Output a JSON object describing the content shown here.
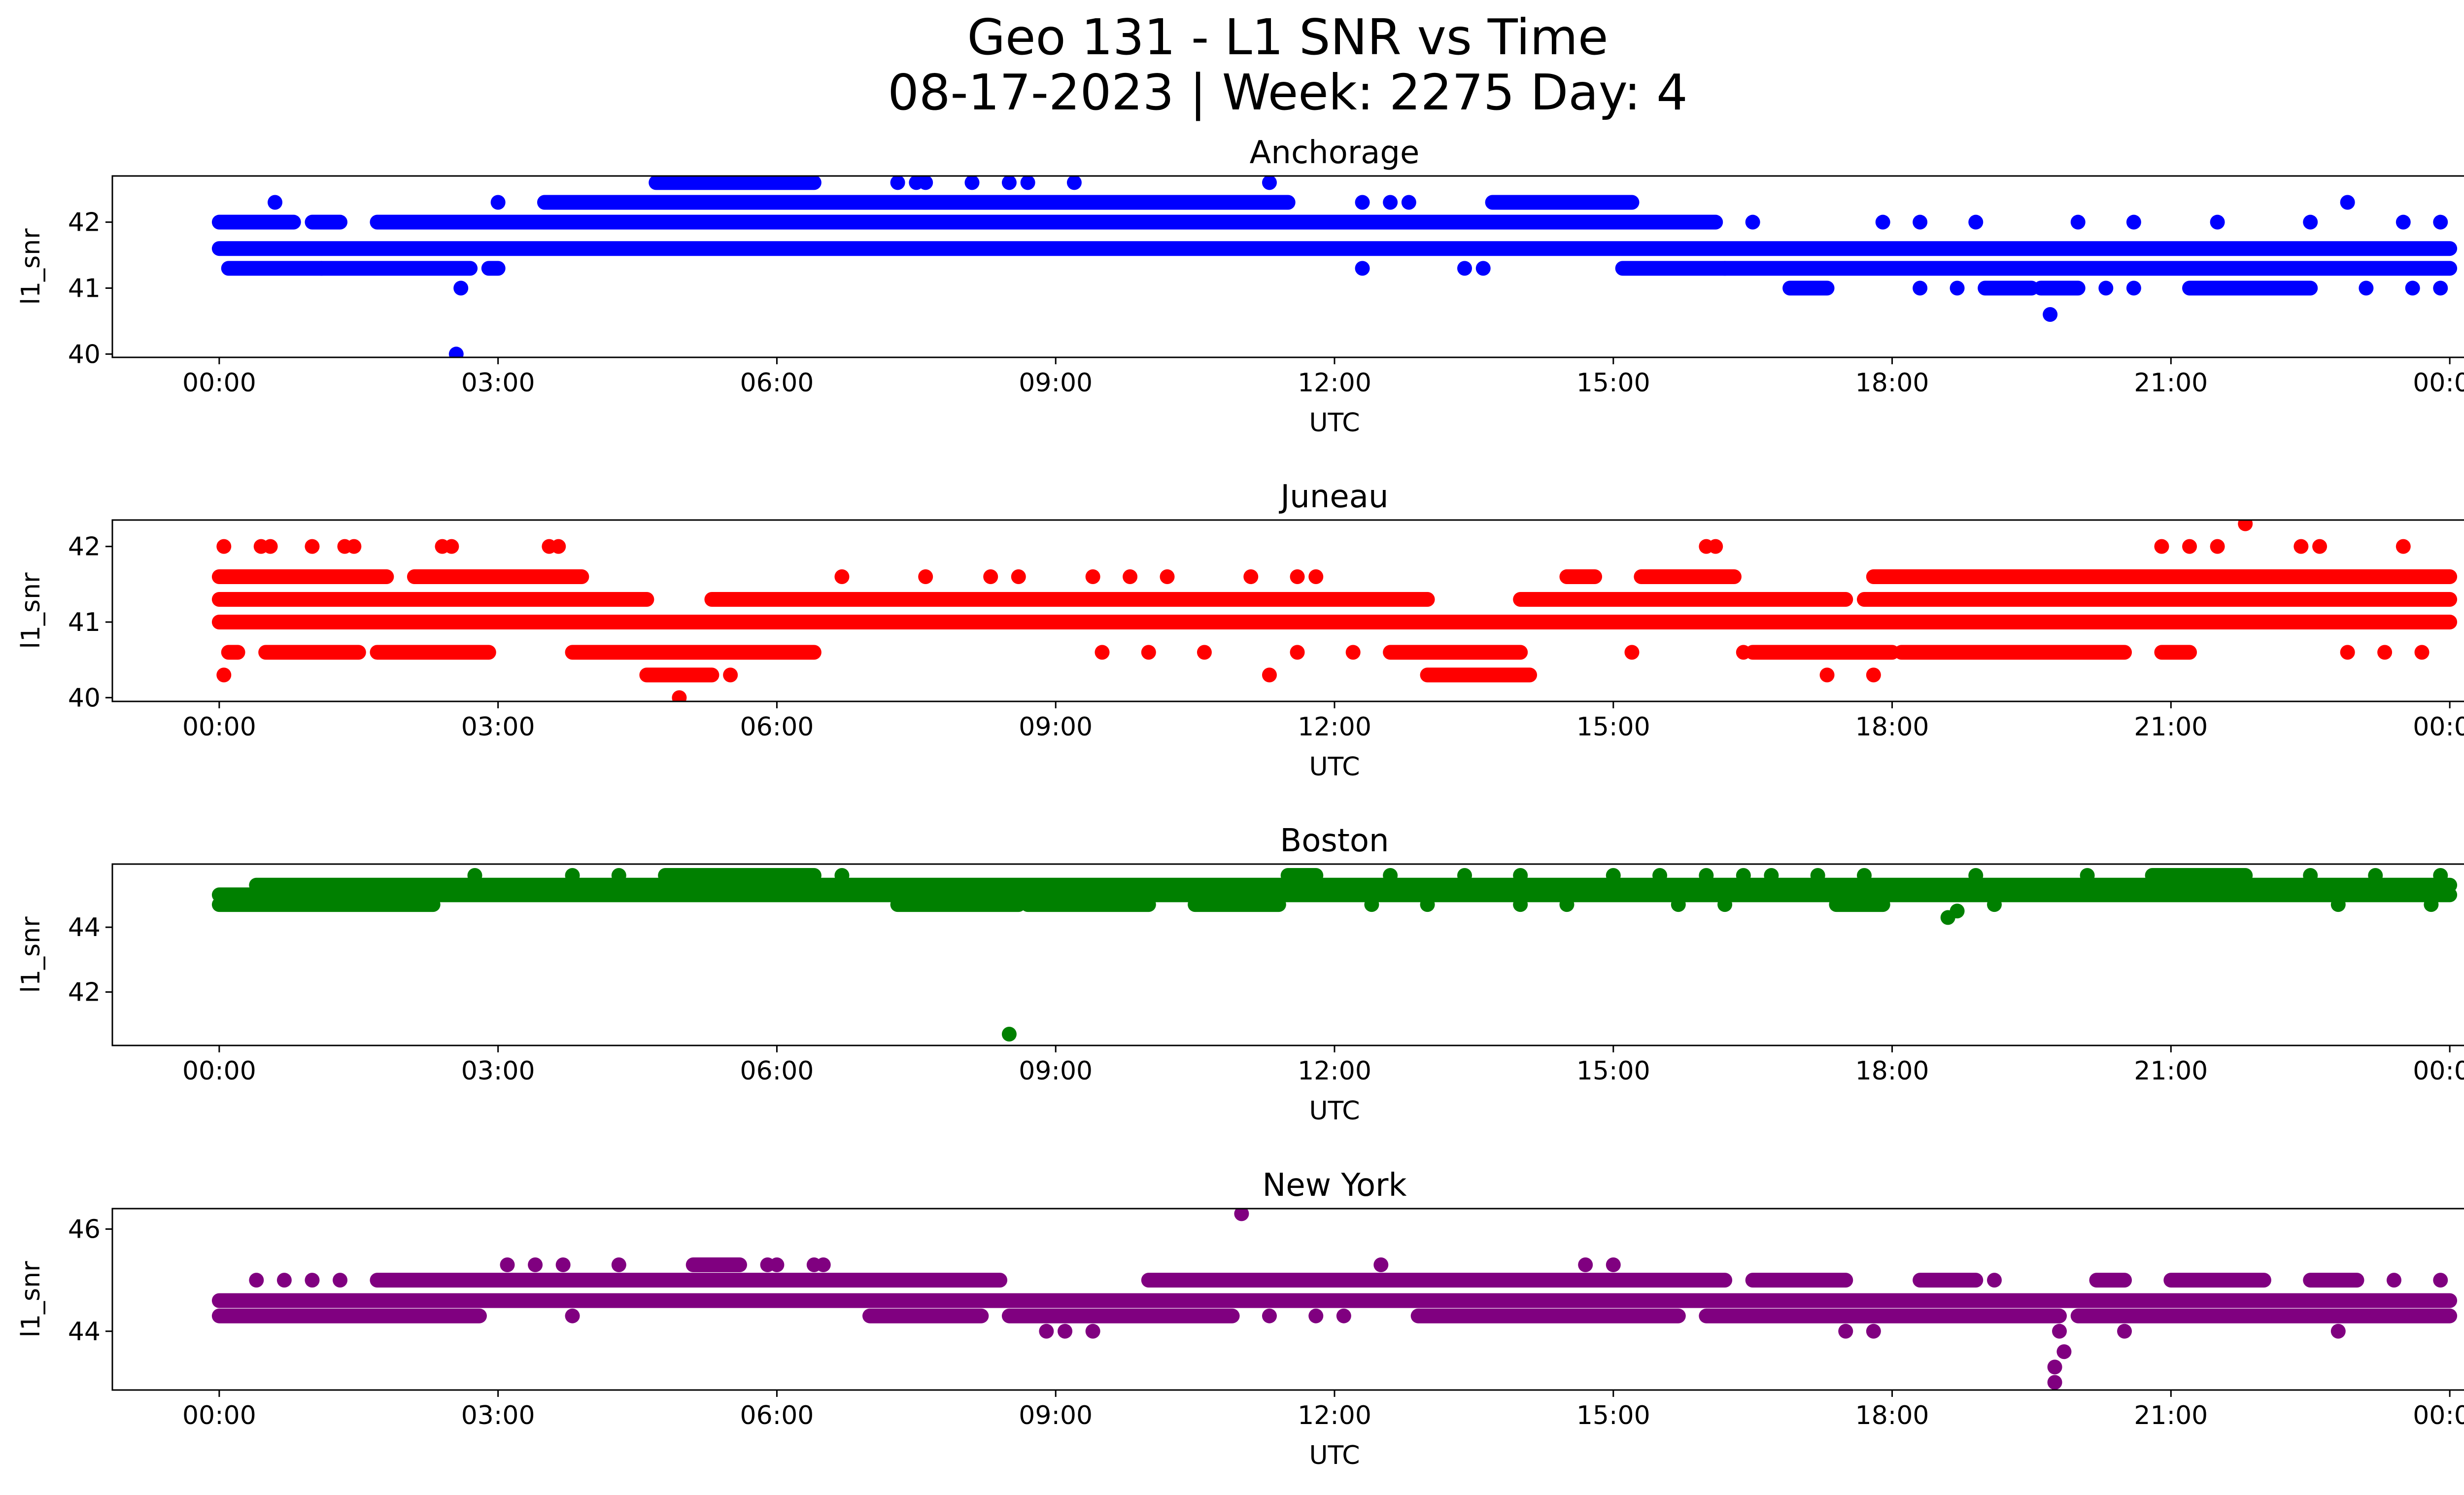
{
  "figure": {
    "title_line1": "Geo 131 - L1 SNR vs Time",
    "title_line2": "08-17-2023 | Week: 2275 Day: 4"
  },
  "chart_data": [
    {
      "type": "scatter",
      "title": "Anchorage",
      "xlabel": "UTC",
      "ylabel": "l1_snr",
      "color": "#0000ff",
      "x_ticks": [
        "00:00",
        "03:00",
        "06:00",
        "09:00",
        "12:00",
        "15:00",
        "18:00",
        "21:00",
        "00:00"
      ],
      "y_ticks": [
        40,
        41,
        42
      ],
      "xlim_hours": [
        -1.15,
        25.15
      ],
      "ylim": [
        39.95,
        42.7
      ],
      "levels": [
        {
          "y": 41.3,
          "ranges": [
            [
              0.1,
              1.1
            ],
            [
              1.1,
              2.7
            ],
            [
              2.9,
              3.0
            ],
            [
              15.1,
              16.2
            ],
            [
              16.2,
              24.0
            ]
          ]
        },
        {
          "y": 41.6,
          "ranges": [
            [
              0.0,
              24.0
            ]
          ]
        },
        {
          "y": 42.0,
          "ranges": [
            [
              0.0,
              0.8
            ],
            [
              1.0,
              1.3
            ],
            [
              1.7,
              16.1
            ]
          ]
        },
        {
          "y": 42.3,
          "ranges": [
            [
              3.5,
              11.5
            ],
            [
              13.7,
              15.2
            ]
          ]
        },
        {
          "y": 42.6,
          "ranges": [
            [
              4.7,
              6.4
            ]
          ]
        },
        {
          "y": 41.0,
          "ranges": [
            [
              16.9,
              17.3
            ],
            [
              19.0,
              19.5
            ],
            [
              19.6,
              20.0
            ],
            [
              21.2,
              22.5
            ]
          ]
        }
      ],
      "points": [
        {
          "x": 2.55,
          "y": 40.0
        },
        {
          "x": 2.6,
          "y": 41.0
        },
        {
          "x": 0.6,
          "y": 42.3
        },
        {
          "x": 3.0,
          "y": 42.3
        },
        {
          "x": 7.3,
          "y": 42.6
        },
        {
          "x": 7.5,
          "y": 42.6
        },
        {
          "x": 7.6,
          "y": 42.6
        },
        {
          "x": 8.1,
          "y": 42.6
        },
        {
          "x": 8.5,
          "y": 42.6
        },
        {
          "x": 8.7,
          "y": 42.6
        },
        {
          "x": 9.2,
          "y": 42.6
        },
        {
          "x": 11.3,
          "y": 42.6
        },
        {
          "x": 12.3,
          "y": 42.3
        },
        {
          "x": 12.6,
          "y": 42.3
        },
        {
          "x": 12.8,
          "y": 42.3
        },
        {
          "x": 12.3,
          "y": 41.3
        },
        {
          "x": 13.4,
          "y": 41.3
        },
        {
          "x": 13.6,
          "y": 41.3
        },
        {
          "x": 16.5,
          "y": 42.0
        },
        {
          "x": 17.9,
          "y": 42.0
        },
        {
          "x": 18.3,
          "y": 42.0
        },
        {
          "x": 18.9,
          "y": 42.0
        },
        {
          "x": 20.0,
          "y": 42.0
        },
        {
          "x": 20.6,
          "y": 42.0
        },
        {
          "x": 21.5,
          "y": 42.0
        },
        {
          "x": 22.5,
          "y": 42.0
        },
        {
          "x": 23.5,
          "y": 42.0
        },
        {
          "x": 23.9,
          "y": 42.0
        },
        {
          "x": 22.9,
          "y": 42.3
        },
        {
          "x": 19.7,
          "y": 40.6
        },
        {
          "x": 18.3,
          "y": 41.0
        },
        {
          "x": 18.7,
          "y": 41.0
        },
        {
          "x": 20.3,
          "y": 41.0
        },
        {
          "x": 20.6,
          "y": 41.0
        },
        {
          "x": 23.1,
          "y": 41.0
        },
        {
          "x": 23.6,
          "y": 41.0
        },
        {
          "x": 23.9,
          "y": 41.0
        }
      ]
    },
    {
      "type": "scatter",
      "title": "Juneau",
      "xlabel": "UTC",
      "ylabel": "l1_snr",
      "color": "#ff0000",
      "x_ticks": [
        "00:00",
        "03:00",
        "06:00",
        "09:00",
        "12:00",
        "15:00",
        "18:00",
        "21:00",
        "00:00"
      ],
      "y_ticks": [
        40,
        41,
        42
      ],
      "xlim_hours": [
        -1.15,
        25.15
      ],
      "ylim": [
        39.95,
        42.35
      ],
      "levels": [
        {
          "y": 41.6,
          "ranges": [
            [
              0.0,
              1.8
            ],
            [
              2.1,
              3.9
            ],
            [
              14.5,
              14.8
            ],
            [
              15.3,
              16.3
            ],
            [
              17.8,
              24.0
            ]
          ]
        },
        {
          "y": 41.3,
          "ranges": [
            [
              0.0,
              4.6
            ],
            [
              5.3,
              13.0
            ],
            [
              14.0,
              17.5
            ],
            [
              17.7,
              24.0
            ]
          ]
        },
        {
          "y": 41.0,
          "ranges": [
            [
              0.0,
              24.0
            ]
          ]
        },
        {
          "y": 40.6,
          "ranges": [
            [
              0.1,
              0.2
            ],
            [
              0.5,
              1.5
            ],
            [
              1.7,
              2.9
            ],
            [
              3.8,
              6.4
            ],
            [
              12.6,
              14.0
            ],
            [
              16.5,
              18.0
            ],
            [
              18.1,
              20.5
            ],
            [
              20.9,
              21.2
            ]
          ]
        },
        {
          "y": 40.3,
          "ranges": [
            [
              4.6,
              5.3
            ],
            [
              13.0,
              14.1
            ]
          ]
        }
      ],
      "points": [
        {
          "x": 0.05,
          "y": 42.0
        },
        {
          "x": 0.45,
          "y": 42.0
        },
        {
          "x": 0.55,
          "y": 42.0
        },
        {
          "x": 1.0,
          "y": 42.0
        },
        {
          "x": 1.35,
          "y": 42.0
        },
        {
          "x": 1.45,
          "y": 42.0
        },
        {
          "x": 2.4,
          "y": 42.0
        },
        {
          "x": 2.5,
          "y": 42.0
        },
        {
          "x": 3.55,
          "y": 42.0
        },
        {
          "x": 3.65,
          "y": 42.0
        },
        {
          "x": 4.95,
          "y": 40.0
        },
        {
          "x": 5.5,
          "y": 40.3
        },
        {
          "x": 0.05,
          "y": 40.3
        },
        {
          "x": 6.7,
          "y": 41.6
        },
        {
          "x": 7.6,
          "y": 41.6
        },
        {
          "x": 8.3,
          "y": 41.6
        },
        {
          "x": 8.6,
          "y": 41.6
        },
        {
          "x": 9.4,
          "y": 41.6
        },
        {
          "x": 9.8,
          "y": 41.6
        },
        {
          "x": 10.2,
          "y": 41.6
        },
        {
          "x": 11.1,
          "y": 41.6
        },
        {
          "x": 11.6,
          "y": 41.6
        },
        {
          "x": 11.8,
          "y": 41.6
        },
        {
          "x": 11.3,
          "y": 40.3
        },
        {
          "x": 16.0,
          "y": 42.0
        },
        {
          "x": 16.1,
          "y": 42.0
        },
        {
          "x": 17.3,
          "y": 40.3
        },
        {
          "x": 17.8,
          "y": 40.3
        },
        {
          "x": 20.9,
          "y": 42.0
        },
        {
          "x": 21.2,
          "y": 42.0
        },
        {
          "x": 21.5,
          "y": 42.0
        },
        {
          "x": 21.8,
          "y": 42.3
        },
        {
          "x": 22.4,
          "y": 42.0
        },
        {
          "x": 22.6,
          "y": 42.0
        },
        {
          "x": 23.5,
          "y": 42.0
        },
        {
          "x": 22.9,
          "y": 40.6
        },
        {
          "x": 23.3,
          "y": 40.6
        },
        {
          "x": 23.7,
          "y": 40.6
        },
        {
          "x": 9.5,
          "y": 40.6
        },
        {
          "x": 10.0,
          "y": 40.6
        },
        {
          "x": 10.6,
          "y": 40.6
        },
        {
          "x": 11.6,
          "y": 40.6
        },
        {
          "x": 12.2,
          "y": 40.6
        },
        {
          "x": 15.2,
          "y": 40.6
        },
        {
          "x": 16.4,
          "y": 40.6
        }
      ]
    },
    {
      "type": "scatter",
      "title": "Boston",
      "xlabel": "UTC",
      "ylabel": "l1_snr",
      "color": "#008000",
      "x_ticks": [
        "00:00",
        "03:00",
        "06:00",
        "09:00",
        "12:00",
        "15:00",
        "18:00",
        "21:00",
        "00:00"
      ],
      "y_ticks": [
        42,
        44
      ],
      "xlim_hours": [
        -1.15,
        25.15
      ],
      "ylim": [
        40.35,
        45.95
      ],
      "levels": [
        {
          "y": 45.3,
          "ranges": [
            [
              0.4,
              24.0
            ]
          ]
        },
        {
          "y": 45.0,
          "ranges": [
            [
              0.0,
              24.0
            ]
          ]
        },
        {
          "y": 44.7,
          "ranges": [
            [
              0.0,
              2.3
            ],
            [
              7.3,
              8.6
            ],
            [
              8.7,
              10.0
            ],
            [
              10.5,
              11.4
            ],
            [
              17.4,
              17.9
            ]
          ]
        },
        {
          "y": 45.6,
          "ranges": [
            [
              4.8,
              6.4
            ],
            [
              11.5,
              11.8
            ],
            [
              20.8,
              21.8
            ]
          ]
        }
      ],
      "points": [
        {
          "x": 8.5,
          "y": 40.7
        },
        {
          "x": 18.6,
          "y": 44.3
        },
        {
          "x": 18.7,
          "y": 44.5
        },
        {
          "x": 19.1,
          "y": 44.7
        },
        {
          "x": 22.8,
          "y": 44.7
        },
        {
          "x": 23.8,
          "y": 44.7
        },
        {
          "x": 2.75,
          "y": 45.6
        },
        {
          "x": 3.8,
          "y": 45.6
        },
        {
          "x": 4.3,
          "y": 45.6
        },
        {
          "x": 6.7,
          "y": 45.6
        },
        {
          "x": 12.6,
          "y": 45.6
        },
        {
          "x": 13.4,
          "y": 45.6
        },
        {
          "x": 14.0,
          "y": 45.6
        },
        {
          "x": 15.0,
          "y": 45.6
        },
        {
          "x": 15.5,
          "y": 45.6
        },
        {
          "x": 16.0,
          "y": 45.6
        },
        {
          "x": 16.4,
          "y": 45.6
        },
        {
          "x": 16.7,
          "y": 45.6
        },
        {
          "x": 17.2,
          "y": 45.6
        },
        {
          "x": 17.7,
          "y": 45.6
        },
        {
          "x": 18.9,
          "y": 45.6
        },
        {
          "x": 20.1,
          "y": 45.6
        },
        {
          "x": 22.5,
          "y": 45.6
        },
        {
          "x": 23.2,
          "y": 45.6
        },
        {
          "x": 23.9,
          "y": 45.6
        },
        {
          "x": 12.4,
          "y": 44.7
        },
        {
          "x": 13.0,
          "y": 44.7
        },
        {
          "x": 14.0,
          "y": 44.7
        },
        {
          "x": 14.5,
          "y": 44.7
        },
        {
          "x": 15.7,
          "y": 44.7
        },
        {
          "x": 16.2,
          "y": 44.7
        }
      ]
    },
    {
      "type": "scatter",
      "title": "New York",
      "xlabel": "UTC",
      "ylabel": "l1_snr",
      "color": "#800080",
      "x_ticks": [
        "00:00",
        "03:00",
        "06:00",
        "09:00",
        "12:00",
        "15:00",
        "18:00",
        "21:00",
        "00:00"
      ],
      "y_ticks": [
        44,
        46
      ],
      "xlim_hours": [
        -1.15,
        25.15
      ],
      "ylim": [
        42.85,
        46.4
      ],
      "levels": [
        {
          "y": 44.6,
          "ranges": [
            [
              0.0,
              24.0
            ]
          ]
        },
        {
          "y": 44.3,
          "ranges": [
            [
              0.0,
              2.8
            ],
            [
              7.0,
              8.2
            ],
            [
              8.5,
              10.9
            ],
            [
              12.9,
              15.7
            ],
            [
              16.0,
              19.8
            ],
            [
              20.0,
              24.0
            ]
          ]
        },
        {
          "y": 45.0,
          "ranges": [
            [
              1.7,
              8.4
            ],
            [
              10.0,
              16.2
            ],
            [
              16.5,
              17.5
            ],
            [
              18.3,
              18.9
            ],
            [
              20.2,
              20.5
            ],
            [
              21.0,
              22.0
            ],
            [
              22.5,
              23.0
            ]
          ]
        },
        {
          "y": 45.3,
          "ranges": [
            [
              5.1,
              5.6
            ]
          ]
        }
      ],
      "points": [
        {
          "x": 11.0,
          "y": 46.3
        },
        {
          "x": 19.75,
          "y": 43.0
        },
        {
          "x": 19.75,
          "y": 43.3
        },
        {
          "x": 19.85,
          "y": 43.6
        },
        {
          "x": 19.8,
          "y": 44.0
        },
        {
          "x": 8.9,
          "y": 44.0
        },
        {
          "x": 9.1,
          "y": 44.0
        },
        {
          "x": 9.4,
          "y": 44.0
        },
        {
          "x": 17.5,
          "y": 44.0
        },
        {
          "x": 17.8,
          "y": 44.0
        },
        {
          "x": 20.5,
          "y": 44.0
        },
        {
          "x": 22.8,
          "y": 44.0
        },
        {
          "x": 0.4,
          "y": 45.0
        },
        {
          "x": 0.7,
          "y": 45.0
        },
        {
          "x": 1.0,
          "y": 45.0
        },
        {
          "x": 1.3,
          "y": 45.0
        },
        {
          "x": 3.1,
          "y": 45.3
        },
        {
          "x": 3.4,
          "y": 45.3
        },
        {
          "x": 3.7,
          "y": 45.3
        },
        {
          "x": 4.3,
          "y": 45.3
        },
        {
          "x": 5.9,
          "y": 45.3
        },
        {
          "x": 6.0,
          "y": 45.3
        },
        {
          "x": 6.5,
          "y": 45.3
        },
        {
          "x": 6.4,
          "y": 45.3
        },
        {
          "x": 12.5,
          "y": 45.3
        },
        {
          "x": 14.7,
          "y": 45.3
        },
        {
          "x": 15.0,
          "y": 45.3
        },
        {
          "x": 19.1,
          "y": 45.0
        },
        {
          "x": 23.4,
          "y": 45.0
        },
        {
          "x": 23.9,
          "y": 45.0
        },
        {
          "x": 3.8,
          "y": 44.3
        },
        {
          "x": 11.3,
          "y": 44.3
        },
        {
          "x": 11.8,
          "y": 44.3
        },
        {
          "x": 12.1,
          "y": 44.3
        }
      ]
    }
  ]
}
